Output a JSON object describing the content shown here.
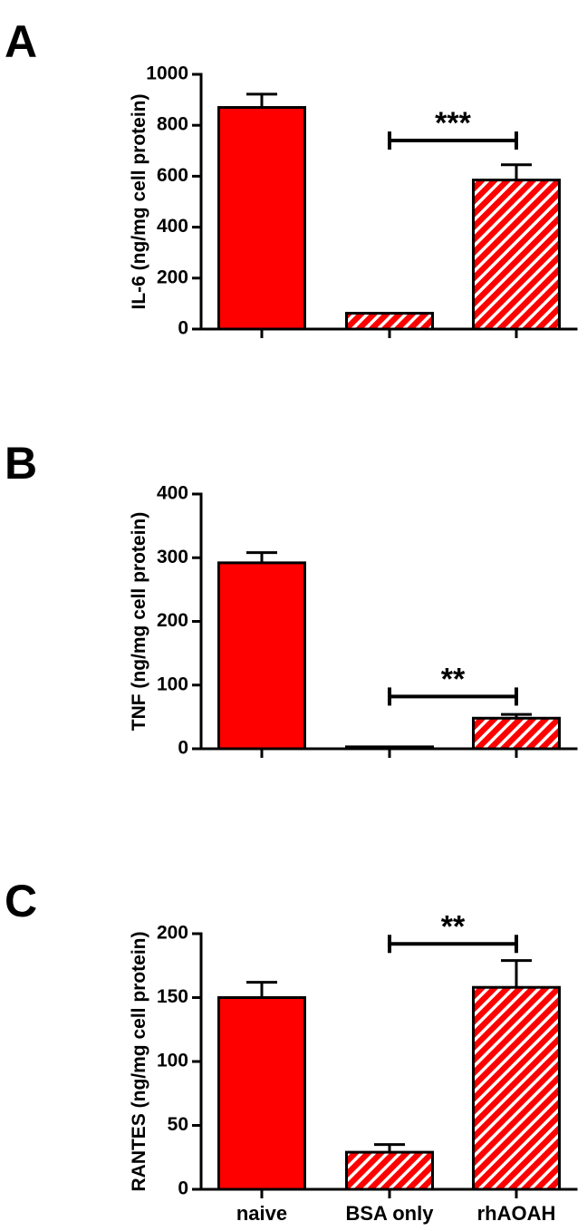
{
  "chart_data": [
    {
      "type": "bar",
      "panel_label": "A",
      "ylabel": "IL-6 (ng/mg cell protein)",
      "ylim": [
        0,
        1000
      ],
      "yticks": [
        "0",
        "200",
        "400",
        "600",
        "800",
        "1000"
      ],
      "categories": [
        "naive",
        "BSA only",
        "rhAOAH"
      ],
      "show_category_labels": false,
      "values": [
        870,
        62,
        585
      ],
      "errors": [
        52,
        0,
        60
      ],
      "bar_fill": [
        "solid",
        "hatched",
        "hatched"
      ],
      "significance": [
        {
          "from": 1,
          "to": 2,
          "label": "***",
          "y": 740
        }
      ]
    },
    {
      "type": "bar",
      "panel_label": "B",
      "ylabel": "TNF (ng/mg cell protein)",
      "ylim": [
        0,
        400
      ],
      "yticks": [
        "0",
        "100",
        "200",
        "300",
        "400"
      ],
      "categories": [
        "naive",
        "BSA only",
        "rhAOAH"
      ],
      "show_category_labels": false,
      "values": [
        292,
        3,
        48
      ],
      "errors": [
        16,
        0,
        6
      ],
      "bar_fill": [
        "solid",
        "hatched",
        "hatched"
      ],
      "significance": [
        {
          "from": 1,
          "to": 2,
          "label": "**",
          "y": 82
        }
      ]
    },
    {
      "type": "bar",
      "panel_label": "C",
      "ylabel": "RANTES (ng/mg cell protein)",
      "ylim": [
        0,
        200
      ],
      "yticks": [
        "0",
        "50",
        "100",
        "150",
        "200"
      ],
      "categories": [
        "naive",
        "BSA only",
        "rhAOAH"
      ],
      "show_category_labels": true,
      "values": [
        150,
        29,
        158
      ],
      "errors": [
        12,
        6,
        21
      ],
      "bar_fill": [
        "solid",
        "hatched",
        "hatched"
      ],
      "significance": [
        {
          "from": 1,
          "to": 2,
          "label": "**",
          "y": 192
        }
      ]
    }
  ],
  "colors": {
    "bar": "#ff0000",
    "hatch": "#ffffff",
    "outline": "#000000"
  }
}
